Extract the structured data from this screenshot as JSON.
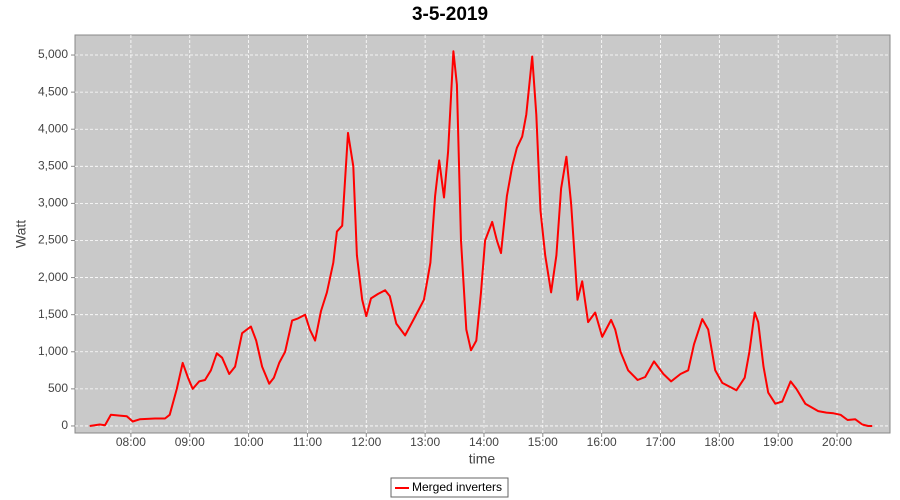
{
  "chart_data": {
    "type": "line",
    "title": "3-5-2019",
    "xlabel": "time",
    "ylabel": "Watt",
    "xlim": [
      7.05,
      20.9
    ],
    "ylim": [
      -95,
      5270
    ],
    "xticks": [
      {
        "value": 8,
        "label": "08:00"
      },
      {
        "value": 9,
        "label": "09:00"
      },
      {
        "value": 10,
        "label": "10:00"
      },
      {
        "value": 11,
        "label": "11:00"
      },
      {
        "value": 12,
        "label": "12:00"
      },
      {
        "value": 13,
        "label": "13:00"
      },
      {
        "value": 14,
        "label": "14:00"
      },
      {
        "value": 15,
        "label": "15:00"
      },
      {
        "value": 16,
        "label": "16:00"
      },
      {
        "value": 17,
        "label": "17:00"
      },
      {
        "value": 18,
        "label": "18:00"
      },
      {
        "value": 19,
        "label": "19:00"
      },
      {
        "value": 20,
        "label": "20:00"
      }
    ],
    "yticks": [
      0,
      500,
      {
        "value": 1000,
        "label": "1,000"
      },
      {
        "value": 1500,
        "label": "1,500"
      },
      {
        "value": 2000,
        "label": "2,000"
      },
      {
        "value": 2500,
        "label": "2,500"
      },
      {
        "value": 3000,
        "label": "3,000"
      },
      {
        "value": 3500,
        "label": "3,500"
      },
      {
        "value": 4000,
        "label": "4,000"
      },
      {
        "value": 4500,
        "label": "4,500"
      },
      {
        "value": 5000,
        "label": "5,000"
      }
    ],
    "grid": true,
    "legend": "bottom",
    "x": [
      7.3,
      7.47,
      7.56,
      7.66,
      7.81,
      7.93,
      8.03,
      8.15,
      8.41,
      8.58,
      8.66,
      8.78,
      8.88,
      8.97,
      9.05,
      9.16,
      9.26,
      9.36,
      9.46,
      9.55,
      9.67,
      9.77,
      9.89,
      10.04,
      10.13,
      10.23,
      10.35,
      10.43,
      10.52,
      10.62,
      10.74,
      10.84,
      10.96,
      11.04,
      11.13,
      11.23,
      11.33,
      11.44,
      11.5,
      11.59,
      11.69,
      11.78,
      11.84,
      11.93,
      12.0,
      12.08,
      12.2,
      12.32,
      12.4,
      12.51,
      12.66,
      12.78,
      12.88,
      12.98,
      13.09,
      13.17,
      13.24,
      13.32,
      13.39,
      13.48,
      13.54,
      13.61,
      13.7,
      13.78,
      13.87,
      13.95,
      14.02,
      14.14,
      14.22,
      14.29,
      14.39,
      14.48,
      14.56,
      14.65,
      14.72,
      14.82,
      14.89,
      14.96,
      15.04,
      15.14,
      15.23,
      15.31,
      15.4,
      15.48,
      15.59,
      15.67,
      15.77,
      15.89,
      16.01,
      16.16,
      16.23,
      16.32,
      16.45,
      16.61,
      16.74,
      16.89,
      17.05,
      17.18,
      17.34,
      17.47,
      17.57,
      17.71,
      17.81,
      17.93,
      18.05,
      18.29,
      18.43,
      18.51,
      18.6,
      18.66,
      18.75,
      18.83,
      18.95,
      19.07,
      19.21,
      19.31,
      19.46,
      19.68,
      19.82,
      19.94,
      20.06,
      20.18,
      20.31,
      20.43,
      20.53,
      20.6
    ],
    "series": [
      {
        "name": "Merged inverters",
        "color": "#ff0000",
        "values": [
          0,
          20,
          10,
          150,
          140,
          130,
          60,
          90,
          100,
          100,
          150,
          500,
          850,
          650,
          500,
          600,
          620,
          750,
          980,
          920,
          700,
          800,
          1250,
          1340,
          1150,
          800,
          570,
          650,
          850,
          1000,
          1420,
          1450,
          1500,
          1300,
          1150,
          1550,
          1800,
          2200,
          2620,
          2700,
          3950,
          3500,
          2300,
          1700,
          1480,
          1720,
          1780,
          1830,
          1750,
          1380,
          1220,
          1400,
          1550,
          1700,
          2200,
          3100,
          3580,
          3080,
          3700,
          5050,
          4600,
          2500,
          1300,
          1020,
          1150,
          1800,
          2500,
          2750,
          2500,
          2330,
          3100,
          3500,
          3750,
          3900,
          4200,
          4980,
          4200,
          2900,
          2300,
          1800,
          2300,
          3200,
          3630,
          3000,
          1700,
          1950,
          1400,
          1530,
          1200,
          1430,
          1300,
          1000,
          750,
          620,
          660,
          870,
          700,
          600,
          700,
          750,
          1100,
          1440,
          1300,
          750,
          580,
          480,
          650,
          1000,
          1530,
          1400,
          800,
          450,
          300,
          330,
          600,
          500,
          300,
          200,
          180,
          170,
          150,
          80,
          90,
          20,
          0,
          0
        ]
      }
    ]
  }
}
